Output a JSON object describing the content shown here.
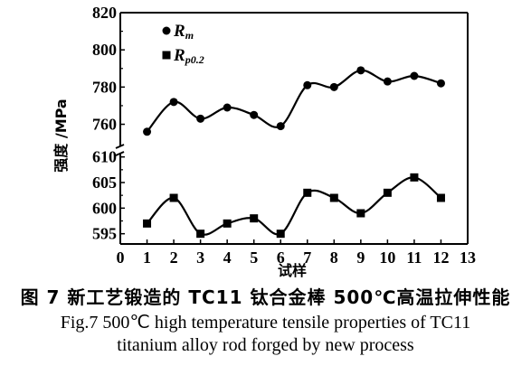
{
  "chart_data": {
    "type": "line",
    "xlabel": "试样",
    "ylabel": "强度 /MPa",
    "xlim": [
      0,
      13
    ],
    "x_ticks": [
      "0",
      "1",
      "2",
      "3",
      "4",
      "5",
      "6",
      "7",
      "8",
      "9",
      "10",
      "11",
      "12",
      "13"
    ],
    "y_upper": {
      "ylim": [
        752,
        820
      ],
      "ticks": [
        "760",
        "780",
        "800",
        "820"
      ]
    },
    "y_lower": {
      "ylim": [
        593,
        611
      ],
      "ticks": [
        "595",
        "600",
        "605",
        "610"
      ]
    },
    "legend_position": "top-left",
    "grid": false,
    "x": [
      1,
      2,
      3,
      4,
      5,
      6,
      7,
      8,
      9,
      10,
      11,
      12
    ],
    "series": [
      {
        "name": "Rm",
        "sym": "R",
        "sub": "m",
        "marker": "circle",
        "panel": "upper",
        "values": [
          756,
          772,
          763,
          769,
          765,
          759,
          781,
          780,
          789,
          783,
          786,
          782
        ]
      },
      {
        "name": "Rp0.2",
        "sym": "R",
        "sub": "p0.2",
        "marker": "square",
        "panel": "lower",
        "values": [
          597,
          602,
          595,
          597,
          598,
          595,
          603,
          602,
          599,
          603,
          606,
          602
        ]
      }
    ]
  },
  "caption": {
    "cn": "图 7  新工艺锻造的 TC11 钛合金棒 500℃高温拉伸性能",
    "en_line1": "Fig.7  500℃ high temperature tensile properties of TC11",
    "en_line2": "titanium alloy rod forged by new process"
  }
}
